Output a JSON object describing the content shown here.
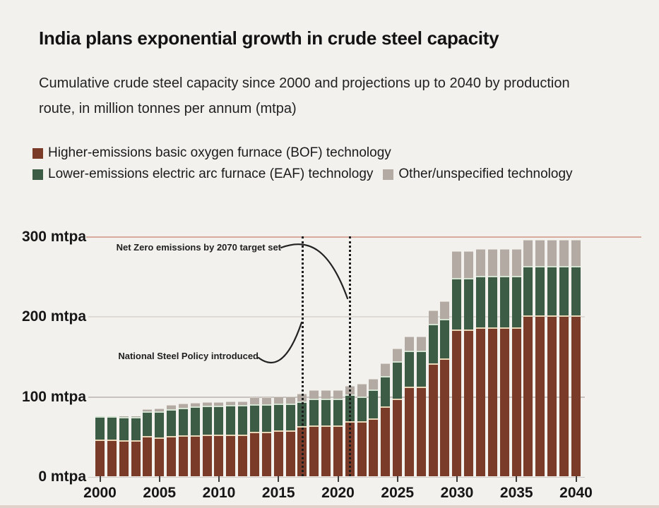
{
  "page": {
    "title": "India plans exponential growth in crude steel capacity",
    "subtitle_line1": "Cumulative crude steel capacity since 2000 and projections up to 2040 by production",
    "subtitle_line2": "route, in million tonnes per annum (mtpa)"
  },
  "legend": {
    "items": [
      {
        "label": "Higher-emissions basic oxygen furnace (BOF) technology",
        "color": "#7a3c29"
      },
      {
        "label": "Lower-emissions electric arc furnace (EAF) technology",
        "color": "#3d5c45"
      },
      {
        "label": "Other/unspecified technology",
        "color": "#b3aaa3"
      }
    ]
  },
  "annotations": {
    "net_zero": "Net Zero emissions by 2070 target set",
    "steel_policy": "National Steel Policy introduced"
  },
  "chart_data": {
    "type": "bar",
    "stacked": true,
    "title": "India plans exponential growth in crude steel capacity",
    "subtitle": "Cumulative crude steel capacity since 2000 and projections up to 2040 by production route, in million tonnes per annum (mtpa)",
    "unit": "mtpa",
    "ylim": [
      0,
      300
    ],
    "grid": "horizontal",
    "legend_position": "top-left",
    "y_axis_labels": [
      "300 mtpa",
      "200 mtpa",
      "100 mtpa",
      "0 mtpa"
    ],
    "x_tick_labels": [
      "2000",
      "2005",
      "2010",
      "2015",
      "2020",
      "2025",
      "2030",
      "2035",
      "2040"
    ],
    "x": [
      2000,
      2001,
      2002,
      2003,
      2004,
      2005,
      2006,
      2007,
      2008,
      2009,
      2010,
      2011,
      2012,
      2013,
      2014,
      2015,
      2016,
      2017,
      2018,
      2019,
      2020,
      2021,
      2022,
      2023,
      2024,
      2025,
      2026,
      2027,
      2028,
      2029,
      2030,
      2031,
      2032,
      2033,
      2034,
      2035,
      2036,
      2037,
      2038,
      2039,
      2040
    ],
    "series": [
      {
        "name": "Higher-emissions basic oxygen furnace (BOF) technology",
        "color": "#7a3c29",
        "values": [
          46,
          46,
          45,
          45,
          50,
          49,
          50,
          51,
          51,
          52,
          52,
          52,
          52,
          56,
          56,
          57,
          57,
          63,
          64,
          64,
          64,
          69,
          69,
          72,
          87,
          97,
          112,
          112,
          141,
          147,
          184,
          184,
          186,
          186,
          186,
          186,
          201,
          201,
          201,
          201,
          201
        ]
      },
      {
        "name": "Lower-emissions electric arc furnace (EAF) technology",
        "color": "#3d5c45",
        "values": [
          29,
          29,
          29,
          29,
          31,
          32,
          34,
          35,
          36,
          36,
          36,
          37,
          37,
          34,
          34,
          34,
          34,
          31,
          33,
          33,
          33,
          33,
          31,
          37,
          38,
          47,
          45,
          45,
          50,
          50,
          64,
          64,
          65,
          65,
          65,
          65,
          62,
          62,
          62,
          62,
          62
        ]
      },
      {
        "name": "Other/unspecified technology",
        "color": "#b3aaa3",
        "values": [
          0,
          0,
          1,
          1,
          3,
          4,
          5,
          5,
          5,
          5,
          5,
          5,
          5,
          9,
          9,
          9,
          9,
          9,
          11,
          11,
          11,
          11,
          16,
          13,
          16,
          16,
          18,
          18,
          16,
          22,
          34,
          34,
          33,
          33,
          33,
          33,
          33,
          33,
          33,
          33,
          33
        ]
      }
    ],
    "event_lines": [
      {
        "year": 2017,
        "label": "National Steel Policy introduced"
      },
      {
        "year": 2021,
        "label": "Net Zero emissions by 2070 target set"
      }
    ]
  }
}
